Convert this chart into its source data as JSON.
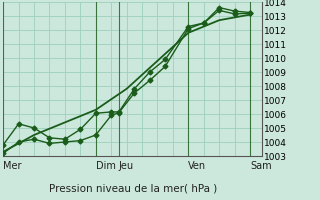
{
  "title": "Pression niveau de la mer( hPa )",
  "background_color": "#cce8dc",
  "grid_major_color": "#9ecfbe",
  "line_color": "#1a5c1a",
  "ylim": [
    1003,
    1014
  ],
  "yticks": [
    1003,
    1004,
    1005,
    1006,
    1007,
    1008,
    1009,
    1010,
    1011,
    1012,
    1013,
    1014
  ],
  "xlabel_days": [
    "Mer",
    "Dim",
    "Jeu",
    "Ven",
    "Sam"
  ],
  "xday_positions": [
    0,
    3.0,
    3.75,
    6.0,
    8.0
  ],
  "vline_positions": [
    0.0,
    3.0,
    3.75,
    6.0,
    8.0
  ],
  "xlim": [
    0,
    8.4
  ],
  "line1_x": [
    0,
    0.5,
    1.0,
    1.5,
    2.0,
    2.5,
    3.0,
    3.5,
    3.75,
    4.25,
    4.75,
    5.25,
    6.0,
    6.5,
    7.0,
    7.5,
    8.0
  ],
  "line1_y": [
    1003.2,
    1004.0,
    1004.2,
    1003.9,
    1004.0,
    1004.1,
    1004.5,
    1005.9,
    1006.1,
    1007.5,
    1008.4,
    1009.4,
    1012.1,
    1012.5,
    1013.4,
    1013.15,
    1013.2
  ],
  "line2_x": [
    0,
    0.5,
    1.0,
    1.5,
    2.0,
    2.5,
    3.0,
    3.5,
    3.75,
    4.25,
    4.75,
    5.25,
    6.0,
    6.5,
    7.0,
    7.5,
    8.0
  ],
  "line2_y": [
    1003.8,
    1005.3,
    1005.0,
    1004.3,
    1004.2,
    1004.9,
    1006.05,
    1006.15,
    1006.15,
    1007.8,
    1009.0,
    1009.9,
    1012.25,
    1012.5,
    1013.6,
    1013.35,
    1013.25
  ],
  "line3_x": [
    0,
    1,
    2,
    3,
    4,
    5,
    6,
    7,
    8
  ],
  "line3_y": [
    1003.3,
    1004.5,
    1005.4,
    1006.3,
    1007.8,
    1009.8,
    1011.8,
    1012.7,
    1013.1
  ],
  "marker_size": 2.5,
  "linewidth": 1.0,
  "ylabel_fontsize": 6.5,
  "xlabel_fontsize": 7.0,
  "title_fontsize": 7.5
}
